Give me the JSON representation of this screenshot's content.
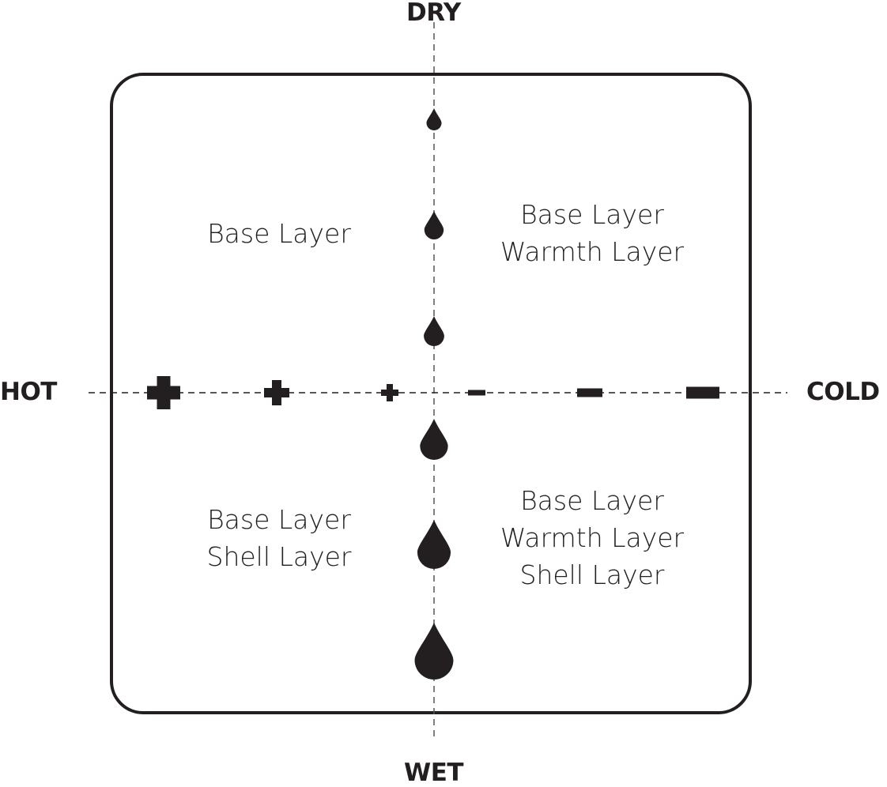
{
  "axes": {
    "top": "DRY",
    "bottom": "WET",
    "left": "HOT",
    "right": "COLD"
  },
  "quadrants": {
    "hot_dry": [
      "Base Layer"
    ],
    "cold_dry": [
      "Base Layer",
      "Warmth Layer"
    ],
    "hot_wet": [
      "Base Layer",
      "Shell Layer"
    ],
    "cold_wet": [
      "Base Layer",
      "Warmth Layer",
      "Shell Layer"
    ]
  },
  "markers": {
    "vertical": "drop-icon, increasing size from dry to wet (6 drops)",
    "horizontal": "plus-icons toward hot (3), minus-icons toward cold (3), size increasing outward"
  },
  "colors": {
    "ink": "#231f20"
  }
}
